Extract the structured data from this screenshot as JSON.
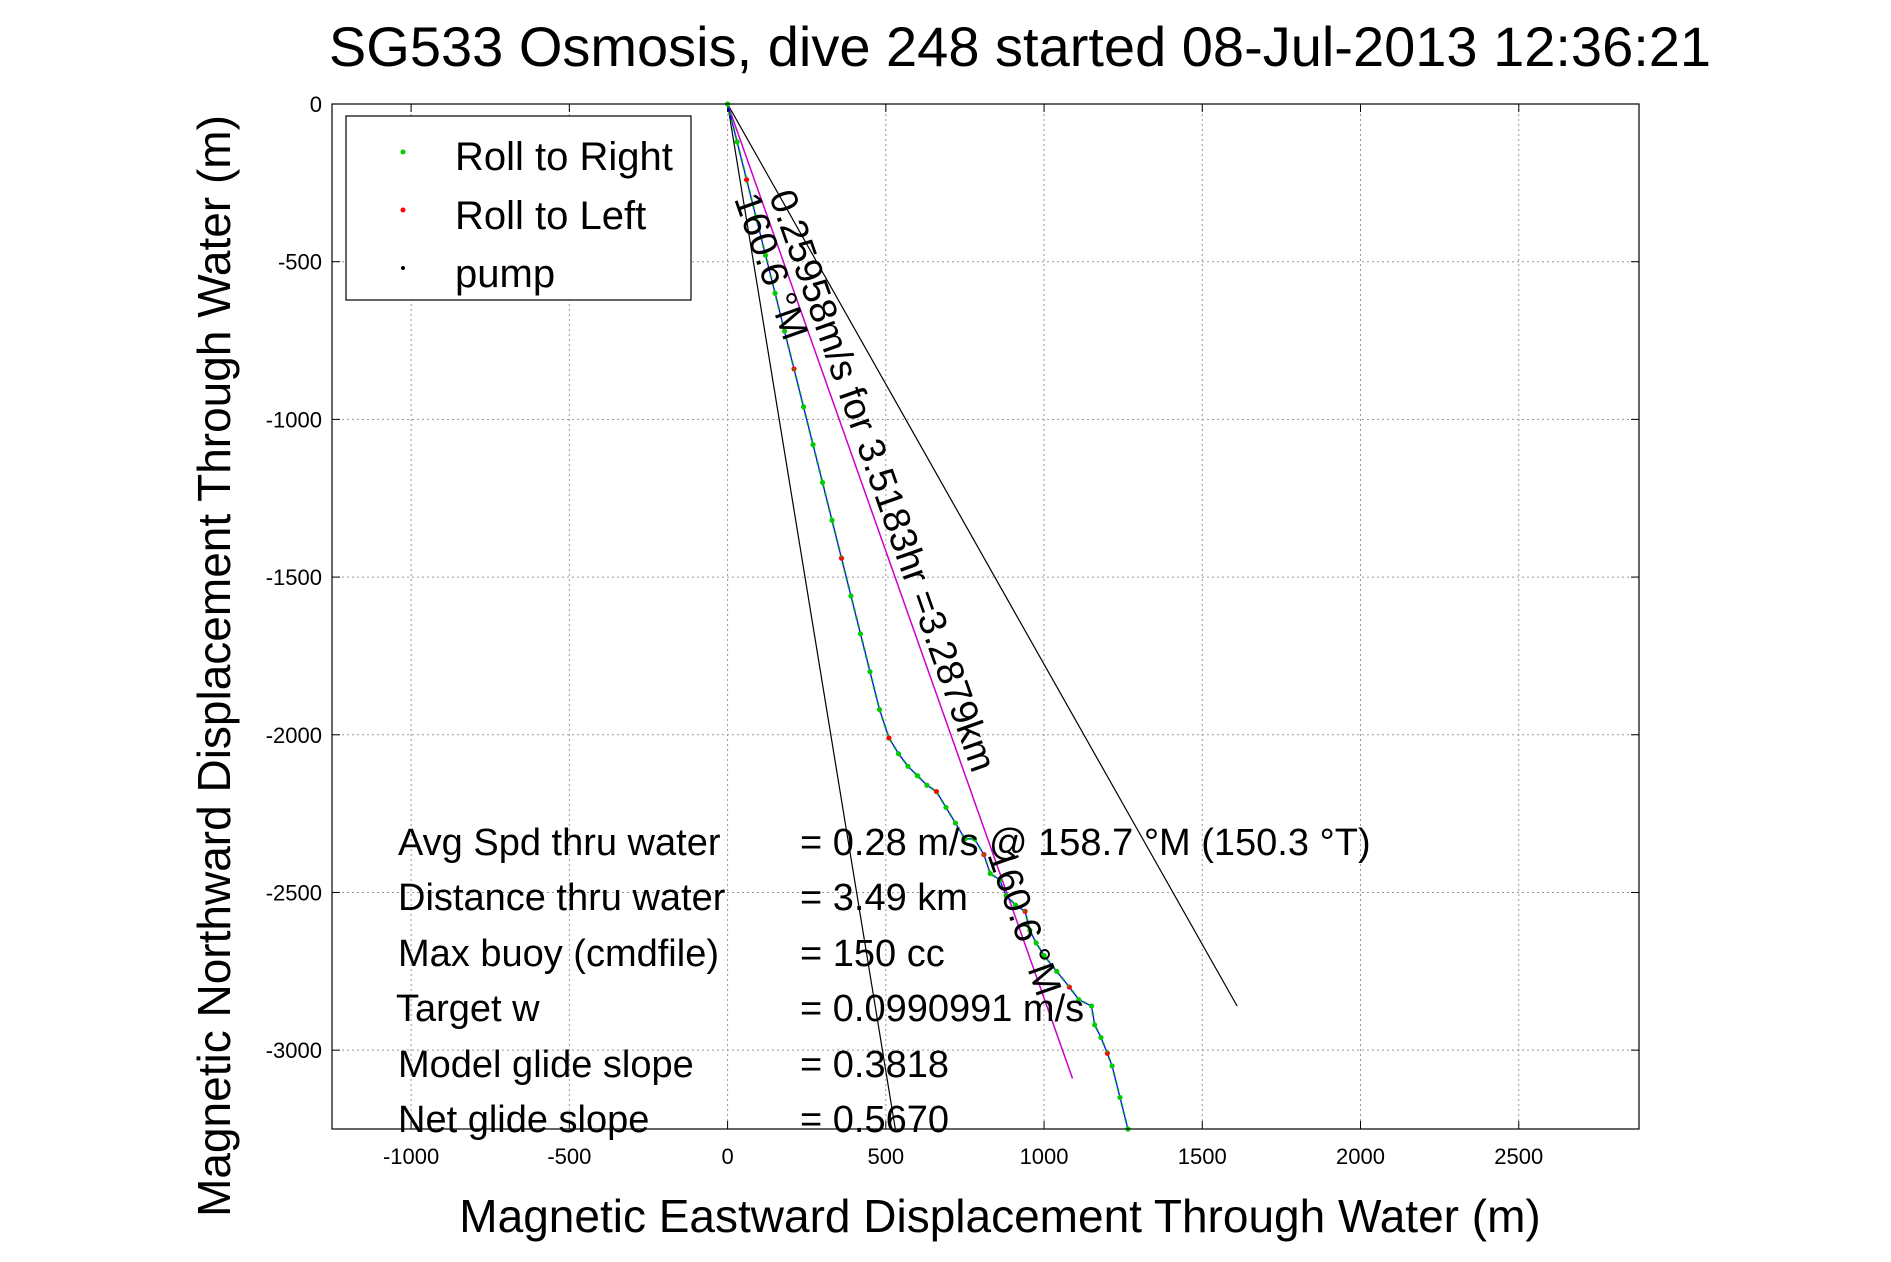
{
  "chart_data": {
    "type": "scatter",
    "title": "SG533 Osmosis, dive 248 started 08-Jul-2013 12:36:21",
    "xlabel": "Magnetic Eastward Displacement Through Water (m)",
    "ylabel": "Magnetic Northward Displacement Through Water (m)",
    "xlim": [
      -1250,
      2880
    ],
    "ylim": [
      -3250,
      0
    ],
    "xticks": [
      -1000,
      -500,
      0,
      500,
      1000,
      1500,
      2000,
      2500
    ],
    "yticks": [
      0,
      -500,
      -1000,
      -1500,
      -2000,
      -2500,
      -3000
    ],
    "grid": true,
    "legend_position": "top-left",
    "legend": [
      {
        "label": "Roll to Right",
        "color": "#00cc00"
      },
      {
        "label": "Roll to Left",
        "color": "#ff0000"
      },
      {
        "label": "pump",
        "color": "#000000"
      }
    ],
    "colors": {
      "track": "#0000ff",
      "track_dots": "#00cc00",
      "heading_line": "#cc00cc",
      "wedge": "#000000"
    },
    "track": {
      "x": [
        0,
        30,
        60,
        90,
        120,
        150,
        180,
        210,
        240,
        270,
        300,
        330,
        360,
        390,
        420,
        450,
        480,
        510,
        540,
        570,
        600,
        630,
        660,
        690,
        720,
        750,
        780,
        810,
        830,
        860,
        880,
        910,
        940,
        955,
        975,
        1000,
        1040,
        1080,
        1110,
        1150,
        1160,
        1180,
        1200,
        1215,
        1240,
        1265
      ],
      "y": [
        0,
        -120,
        -240,
        -360,
        -480,
        -600,
        -720,
        -840,
        -960,
        -1080,
        -1200,
        -1320,
        -1440,
        -1560,
        -1680,
        -1800,
        -1920,
        -2010,
        -2060,
        -2100,
        -2130,
        -2160,
        -2180,
        -2230,
        -2280,
        -2330,
        -2330,
        -2380,
        -2440,
        -2460,
        -2510,
        -2540,
        -2560,
        -2620,
        -2660,
        -2700,
        -2750,
        -2800,
        -2840,
        -2860,
        -2920,
        -2960,
        -3010,
        -3050,
        -3150,
        -3250
      ]
    },
    "annotation_heading_line": {
      "x": [
        0,
        1090
      ],
      "y": [
        0,
        -3090
      ]
    },
    "annotation_wedge_left": {
      "x": [
        0,
        530
      ],
      "y": [
        0,
        -3250
      ]
    },
    "annotation_wedge_right": {
      "x": [
        0,
        1610
      ],
      "y": [
        0,
        -2860
      ]
    },
    "annotations": [
      {
        "text": "0.25958m/s for 3.5183hr =3.2879km",
        "x": 130,
        "y": -290,
        "rotation_deg": 70.6
      },
      {
        "text": "160.6 °M",
        "x": 20,
        "y": -300,
        "rotation_deg": 70.6
      },
      {
        "text": "160.6 °M",
        "x": 820,
        "y": -2380,
        "rotation_deg": 70.6
      }
    ],
    "stats": [
      {
        "label": "Avg Spd thru water",
        "value": "=  0.28 m/s @ 158.7 °M (150.3 °T)"
      },
      {
        "label": "Distance thru water",
        "value": "=  3.49 km"
      },
      {
        "label": "Max buoy (cmdfile)",
        "value": "= 150 cc"
      },
      {
        "label": "Target w",
        "value": "= 0.0990991 m/s"
      },
      {
        "label": "Model glide slope",
        "value": "= 0.3818"
      },
      {
        "label": "Net glide slope",
        "value": "= 0.5670"
      }
    ]
  }
}
